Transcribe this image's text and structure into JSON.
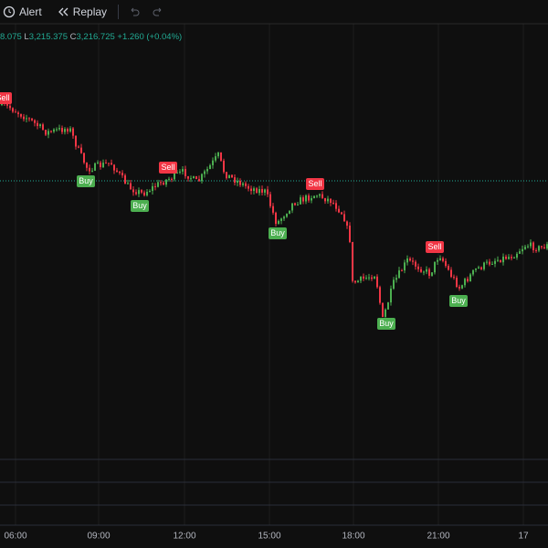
{
  "toolbar": {
    "alert": "Alert",
    "replay": "Replay"
  },
  "legend": {
    "open_tail": "8.075",
    "low_key": "L",
    "low": "3,215.375",
    "close_key": "C",
    "close": "3,216.725",
    "change": "+1.260 (+0.04%)"
  },
  "x_axis": [
    "06:00",
    "09:00",
    "12:00",
    "15:00",
    "18:00",
    "21:00",
    "17"
  ],
  "signals": [
    "Sell",
    "Buy",
    "Sell",
    "Buy",
    "Sell",
    "Buy",
    "Sell",
    "Buy",
    "Buy"
  ]
}
